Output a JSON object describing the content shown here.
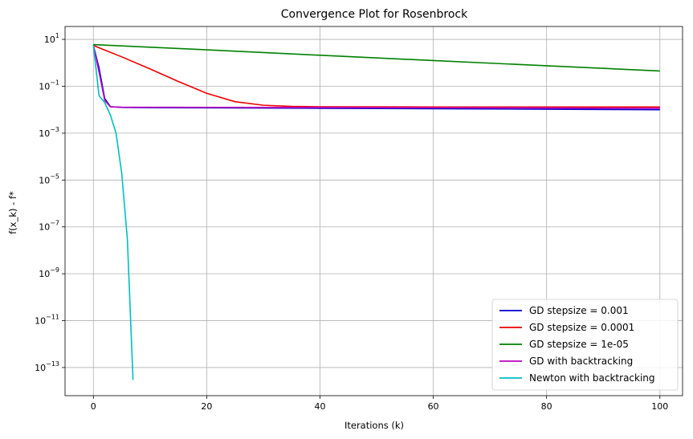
{
  "chart_data": {
    "type": "line",
    "title": "Convergence Plot for Rosenbrock",
    "xlabel": "Iterations (k)",
    "ylabel": "f(x_k) - f*",
    "xlim": [
      -5,
      104
    ],
    "ylim_log10": [
      -14.2,
      1.55
    ],
    "yscale": "log",
    "grid": true,
    "legend_position": "lower-right",
    "x_ticks": [
      0,
      20,
      40,
      60,
      80,
      100
    ],
    "y_tick_exponents": [
      1,
      -1,
      -3,
      -5,
      -7,
      -9,
      -11,
      -13
    ],
    "series": [
      {
        "name": "GD stepsize = 0.001",
        "color": "#0000cc",
        "points": [
          [
            0,
            5.5
          ],
          [
            1,
            0.6
          ],
          [
            2,
            0.03
          ],
          [
            3,
            0.0135
          ],
          [
            5,
            0.0125
          ],
          [
            10,
            0.0122
          ],
          [
            20,
            0.012
          ],
          [
            40,
            0.0115
          ],
          [
            60,
            0.011
          ],
          [
            80,
            0.0105
          ],
          [
            100,
            0.01
          ]
        ]
      },
      {
        "name": "GD stepsize = 0.0001",
        "color": "#ee0000",
        "points": [
          [
            0,
            5.5
          ],
          [
            5,
            1.8
          ],
          [
            10,
            0.55
          ],
          [
            15,
            0.16
          ],
          [
            20,
            0.05
          ],
          [
            25,
            0.022
          ],
          [
            30,
            0.0155
          ],
          [
            35,
            0.0138
          ],
          [
            40,
            0.0133
          ],
          [
            60,
            0.0131
          ],
          [
            80,
            0.013
          ],
          [
            100,
            0.013
          ]
        ]
      },
      {
        "name": "GD stepsize = 1e-05",
        "color": "#008000",
        "points": [
          [
            0,
            6.0
          ],
          [
            20,
            3.6
          ],
          [
            40,
            2.1
          ],
          [
            60,
            1.25
          ],
          [
            80,
            0.75
          ],
          [
            100,
            0.45
          ]
        ]
      },
      {
        "name": "GD with backtracking",
        "color": "#bf00bf",
        "points": [
          [
            0,
            5.5
          ],
          [
            1,
            0.4
          ],
          [
            2,
            0.025
          ],
          [
            3,
            0.0132
          ],
          [
            5,
            0.0128
          ],
          [
            20,
            0.0126
          ],
          [
            40,
            0.0124
          ],
          [
            60,
            0.0121
          ],
          [
            80,
            0.0118
          ],
          [
            100,
            0.0115
          ]
        ]
      },
      {
        "name": "Newton with backtracking",
        "color": "#00bfbf",
        "points": [
          [
            0,
            5.5
          ],
          [
            1,
            0.04
          ],
          [
            2,
            0.02
          ],
          [
            3,
            0.006
          ],
          [
            4,
            0.001
          ],
          [
            5,
            2e-05
          ],
          [
            6,
            3e-08
          ],
          [
            7,
            3e-14
          ]
        ]
      }
    ]
  }
}
